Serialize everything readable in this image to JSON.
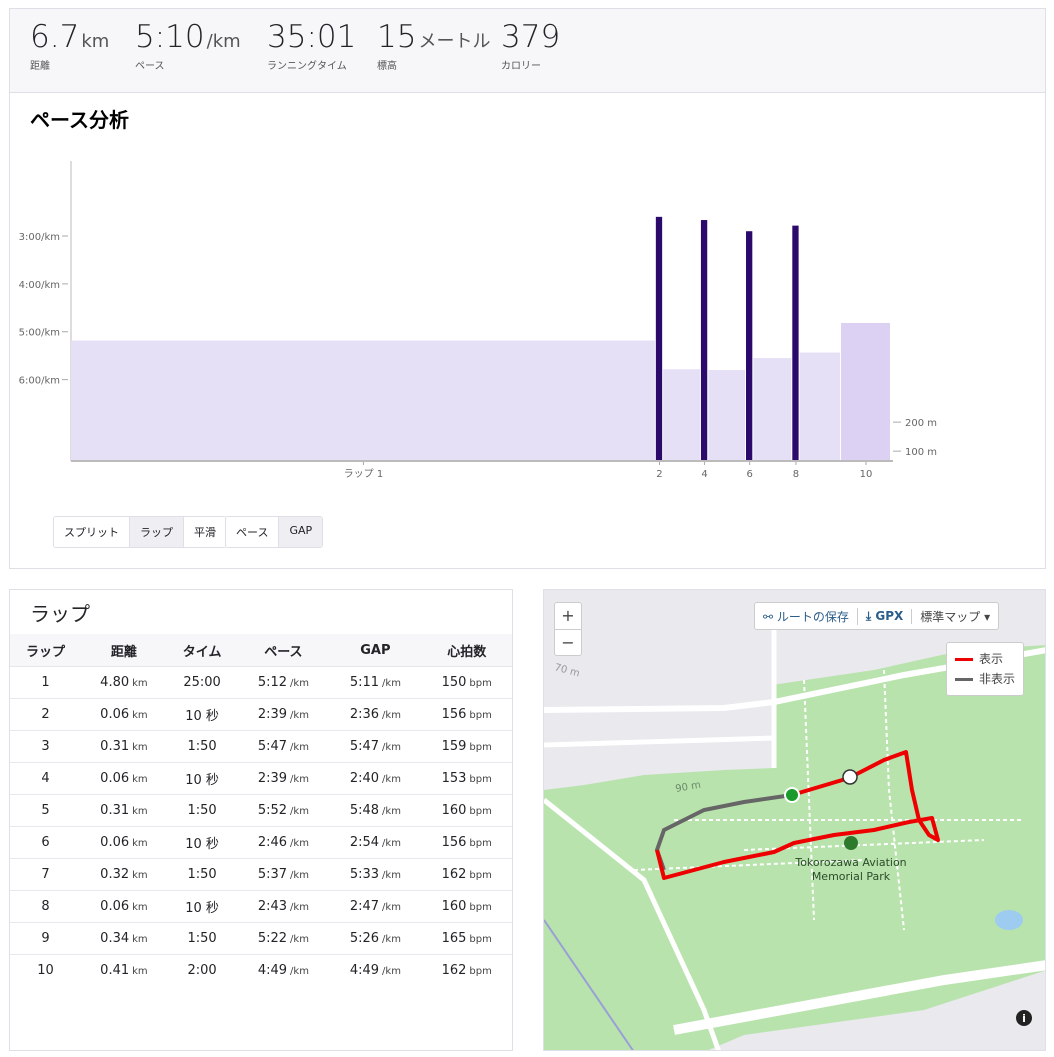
{
  "stats": [
    {
      "value": "6.7",
      "unit": "km",
      "label": "距離"
    },
    {
      "value": "5:10",
      "unit": "/km",
      "label": "ペース"
    },
    {
      "value": "35:01",
      "label": "ランニングタイム"
    },
    {
      "value": "15",
      "unit": "メートル",
      "label": "標高"
    },
    {
      "value": "379",
      "label": "カロリー"
    }
  ],
  "chart_data": {
    "type": "bar",
    "title": "ペース分析",
    "categories": [
      "ラップ 1",
      "2",
      null,
      "4",
      null,
      "6",
      null,
      "8",
      null,
      "10"
    ],
    "widths": [
      4.8,
      0.06,
      0.31,
      0.06,
      0.31,
      0.06,
      0.32,
      0.06,
      0.34,
      0.41
    ],
    "values": [
      311,
      156,
      347,
      160,
      348,
      174,
      333,
      167,
      326,
      289
    ],
    "colors": [
      "#e6e0f7",
      "#2b0a6b",
      "#e6e0f7",
      "#2b0a6b",
      "#e6e0f7",
      "#2b0a6b",
      "#e6e0f7",
      "#2b0a6b",
      "#e6e0f7",
      "#dcd0f3"
    ],
    "xlim": [
      0,
      6.73
    ],
    "ylim": [
      462,
      86
    ],
    "yticks": [
      {
        "value": 180,
        "label": "3:00/km"
      },
      {
        "value": 240,
        "label": "4:00/km"
      },
      {
        "value": 300,
        "label": "5:00/km"
      },
      {
        "value": 360,
        "label": "6:00/km"
      }
    ],
    "y2lim": [
      66,
      1100
    ],
    "y2ticks": [
      {
        "value": 200,
        "label": "200 m"
      },
      {
        "value": 100,
        "label": "100 m"
      }
    ]
  },
  "controls": {
    "group1": [
      "スプリット",
      "ラップ",
      "平滑"
    ],
    "group2": [
      "ペース",
      "GAP"
    ]
  },
  "table": {
    "title": "ラップ",
    "headers": [
      "ラップ",
      "距離",
      "タイム",
      "ペース",
      "GAP",
      "心拍数"
    ],
    "rows": [
      [
        "1",
        [
          "4.80",
          "km"
        ],
        "25:00",
        [
          "5:12",
          "/km"
        ],
        [
          "5:11",
          "/km"
        ],
        [
          "150",
          "bpm"
        ]
      ],
      [
        "2",
        [
          "0.06",
          "km"
        ],
        "10 秒",
        [
          "2:39",
          "/km"
        ],
        [
          "2:36",
          "/km"
        ],
        [
          "156",
          "bpm"
        ]
      ],
      [
        "3",
        [
          "0.31",
          "km"
        ],
        "1:50",
        [
          "5:47",
          "/km"
        ],
        [
          "5:47",
          "/km"
        ],
        [
          "159",
          "bpm"
        ]
      ],
      [
        "4",
        [
          "0.06",
          "km"
        ],
        "10 秒",
        [
          "2:39",
          "/km"
        ],
        [
          "2:40",
          "/km"
        ],
        [
          "153",
          "bpm"
        ]
      ],
      [
        "5",
        [
          "0.31",
          "km"
        ],
        "1:50",
        [
          "5:52",
          "/km"
        ],
        [
          "5:48",
          "/km"
        ],
        [
          "160",
          "bpm"
        ]
      ],
      [
        "6",
        [
          "0.06",
          "km"
        ],
        "10 秒",
        [
          "2:46",
          "/km"
        ],
        [
          "2:54",
          "/km"
        ],
        [
          "156",
          "bpm"
        ]
      ],
      [
        "7",
        [
          "0.32",
          "km"
        ],
        "1:50",
        [
          "5:37",
          "/km"
        ],
        [
          "5:33",
          "/km"
        ],
        [
          "162",
          "bpm"
        ]
      ],
      [
        "8",
        [
          "0.06",
          "km"
        ],
        "10 秒",
        [
          "2:43",
          "/km"
        ],
        [
          "2:47",
          "/km"
        ],
        [
          "160",
          "bpm"
        ]
      ],
      [
        "9",
        [
          "0.34",
          "km"
        ],
        "1:50",
        [
          "5:22",
          "/km"
        ],
        [
          "5:26",
          "/km"
        ],
        [
          "165",
          "bpm"
        ]
      ],
      [
        "10",
        [
          "0.41",
          "km"
        ],
        "2:00",
        [
          "4:49",
          "/km"
        ],
        [
          "4:49",
          "/km"
        ],
        [
          "162",
          "bpm"
        ]
      ]
    ]
  },
  "map": {
    "zoom_in": "+",
    "zoom_out": "−",
    "save_route": "ルートの保存",
    "gpx": "GPX",
    "map_type": "標準マップ",
    "legend": [
      "表示",
      "非表示"
    ],
    "park_name": [
      "Tokorozawa Aviation",
      "Memorial Park"
    ],
    "contours": [
      "70 m",
      "90 m"
    ],
    "info": "i"
  }
}
